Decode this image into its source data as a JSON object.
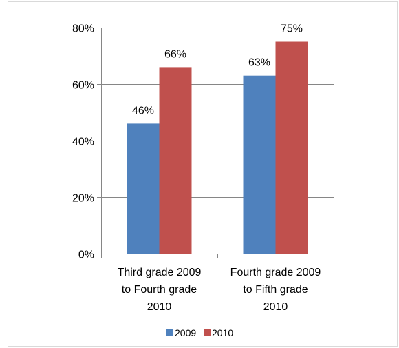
{
  "chart_data": {
    "type": "bar",
    "categories": [
      [
        "Third grade 2009",
        "to Fourth grade",
        "2010"
      ],
      [
        "Fourth grade 2009",
        "to Fifth grade",
        "2010"
      ]
    ],
    "series": [
      {
        "name": "2009",
        "values": [
          46,
          63
        ],
        "labels": [
          "46%",
          "63%"
        ],
        "color": "#4f81bd"
      },
      {
        "name": "2010",
        "values": [
          66,
          75
        ],
        "labels": [
          "66%",
          "75%"
        ],
        "color": "#c0504d"
      }
    ],
    "ylim": [
      0,
      80
    ],
    "yticks": [
      0,
      20,
      40,
      60,
      80
    ],
    "ytick_labels": [
      "0%",
      "20%",
      "40%",
      "60%",
      "80%"
    ],
    "grid": true,
    "legend": "bottom",
    "colors": {
      "grid": "#868686",
      "axis": "#868686",
      "frame": "#d9d9d9"
    }
  }
}
